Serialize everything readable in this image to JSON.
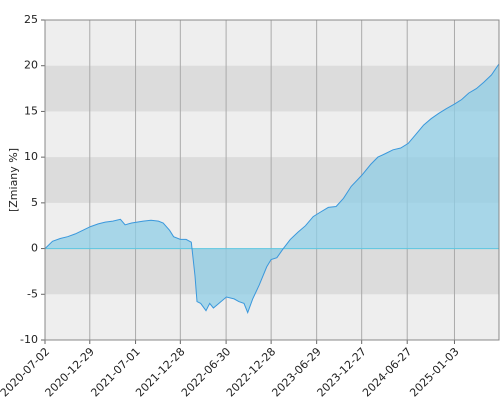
{
  "chart_data": {
    "type": "area",
    "y_label": "[Zmiany %]",
    "x": [
      "2020-07-02",
      "2020-08-01",
      "2020-09-01",
      "2020-10-01",
      "2020-11-01",
      "2020-12-01",
      "2021-01-01",
      "2021-02-01",
      "2021-03-01",
      "2021-04-01",
      "2021-05-01",
      "2021-05-20",
      "2021-06-15",
      "2021-08-01",
      "2021-09-01",
      "2021-10-01",
      "2021-10-20",
      "2021-11-15",
      "2021-12-01",
      "2021-12-28",
      "2022-01-20",
      "2022-02-10",
      "2022-02-25",
      "2022-03-05",
      "2022-03-20",
      "2022-04-10",
      "2022-04-25",
      "2022-05-10",
      "2022-06-01",
      "2022-07-01",
      "2022-08-01",
      "2022-08-20",
      "2022-09-10",
      "2022-09-25",
      "2022-10-15",
      "2022-11-10",
      "2022-12-10",
      "2022-12-28",
      "2023-01-20",
      "2023-02-15",
      "2023-03-15",
      "2023-04-15",
      "2023-05-15",
      "2023-06-15",
      "2023-07-15",
      "2023-08-15",
      "2023-09-15",
      "2023-10-15",
      "2023-11-15",
      "2023-12-27",
      "2024-02-01",
      "2024-03-01",
      "2024-04-01",
      "2024-05-01",
      "2024-06-01",
      "2024-07-01",
      "2024-08-01",
      "2024-09-01",
      "2024-10-01",
      "2024-11-01",
      "2024-12-01",
      "2025-01-03",
      "2025-02-01",
      "2025-03-01",
      "2025-04-01",
      "2025-05-01",
      "2025-06-01",
      "2025-07-01"
    ],
    "values": [
      0,
      0.8,
      1.1,
      1.3,
      1.6,
      2.0,
      2.4,
      2.7,
      2.9,
      3.0,
      3.2,
      2.6,
      2.8,
      3.0,
      3.1,
      3.0,
      2.8,
      2.0,
      1.3,
      1.0,
      1.0,
      0.7,
      -3.0,
      -5.8,
      -6.0,
      -6.8,
      -6.0,
      -6.5,
      -6.0,
      -5.3,
      -5.5,
      -5.8,
      -6.0,
      -7.0,
      -5.5,
      -4.0,
      -2.0,
      -1.2,
      -1.0,
      0.0,
      1.0,
      1.8,
      2.5,
      3.5,
      4.0,
      4.5,
      4.6,
      5.5,
      6.8,
      8.0,
      9.2,
      10.0,
      10.4,
      10.8,
      11.0,
      11.5,
      12.5,
      13.5,
      14.2,
      14.8,
      15.3,
      15.8,
      16.3,
      17.0,
      17.5,
      18.2,
      19.0,
      20.2
    ],
    "color": "#3a98dc",
    "fill": "#8fcde6",
    "xlim": [
      "2020-07-02",
      "2025-07-01"
    ],
    "xticks": [
      "2020-07-02",
      "2020-12-29",
      "2021-07-01",
      "2021-12-28",
      "2022-06-30",
      "2022-12-28",
      "2023-06-29",
      "2023-12-27",
      "2024-06-27",
      "2025-01-03"
    ],
    "ylim": [
      -10,
      25
    ],
    "yticks": [
      -10,
      -5,
      0,
      5,
      10,
      15,
      20,
      25
    ],
    "grid": true
  }
}
